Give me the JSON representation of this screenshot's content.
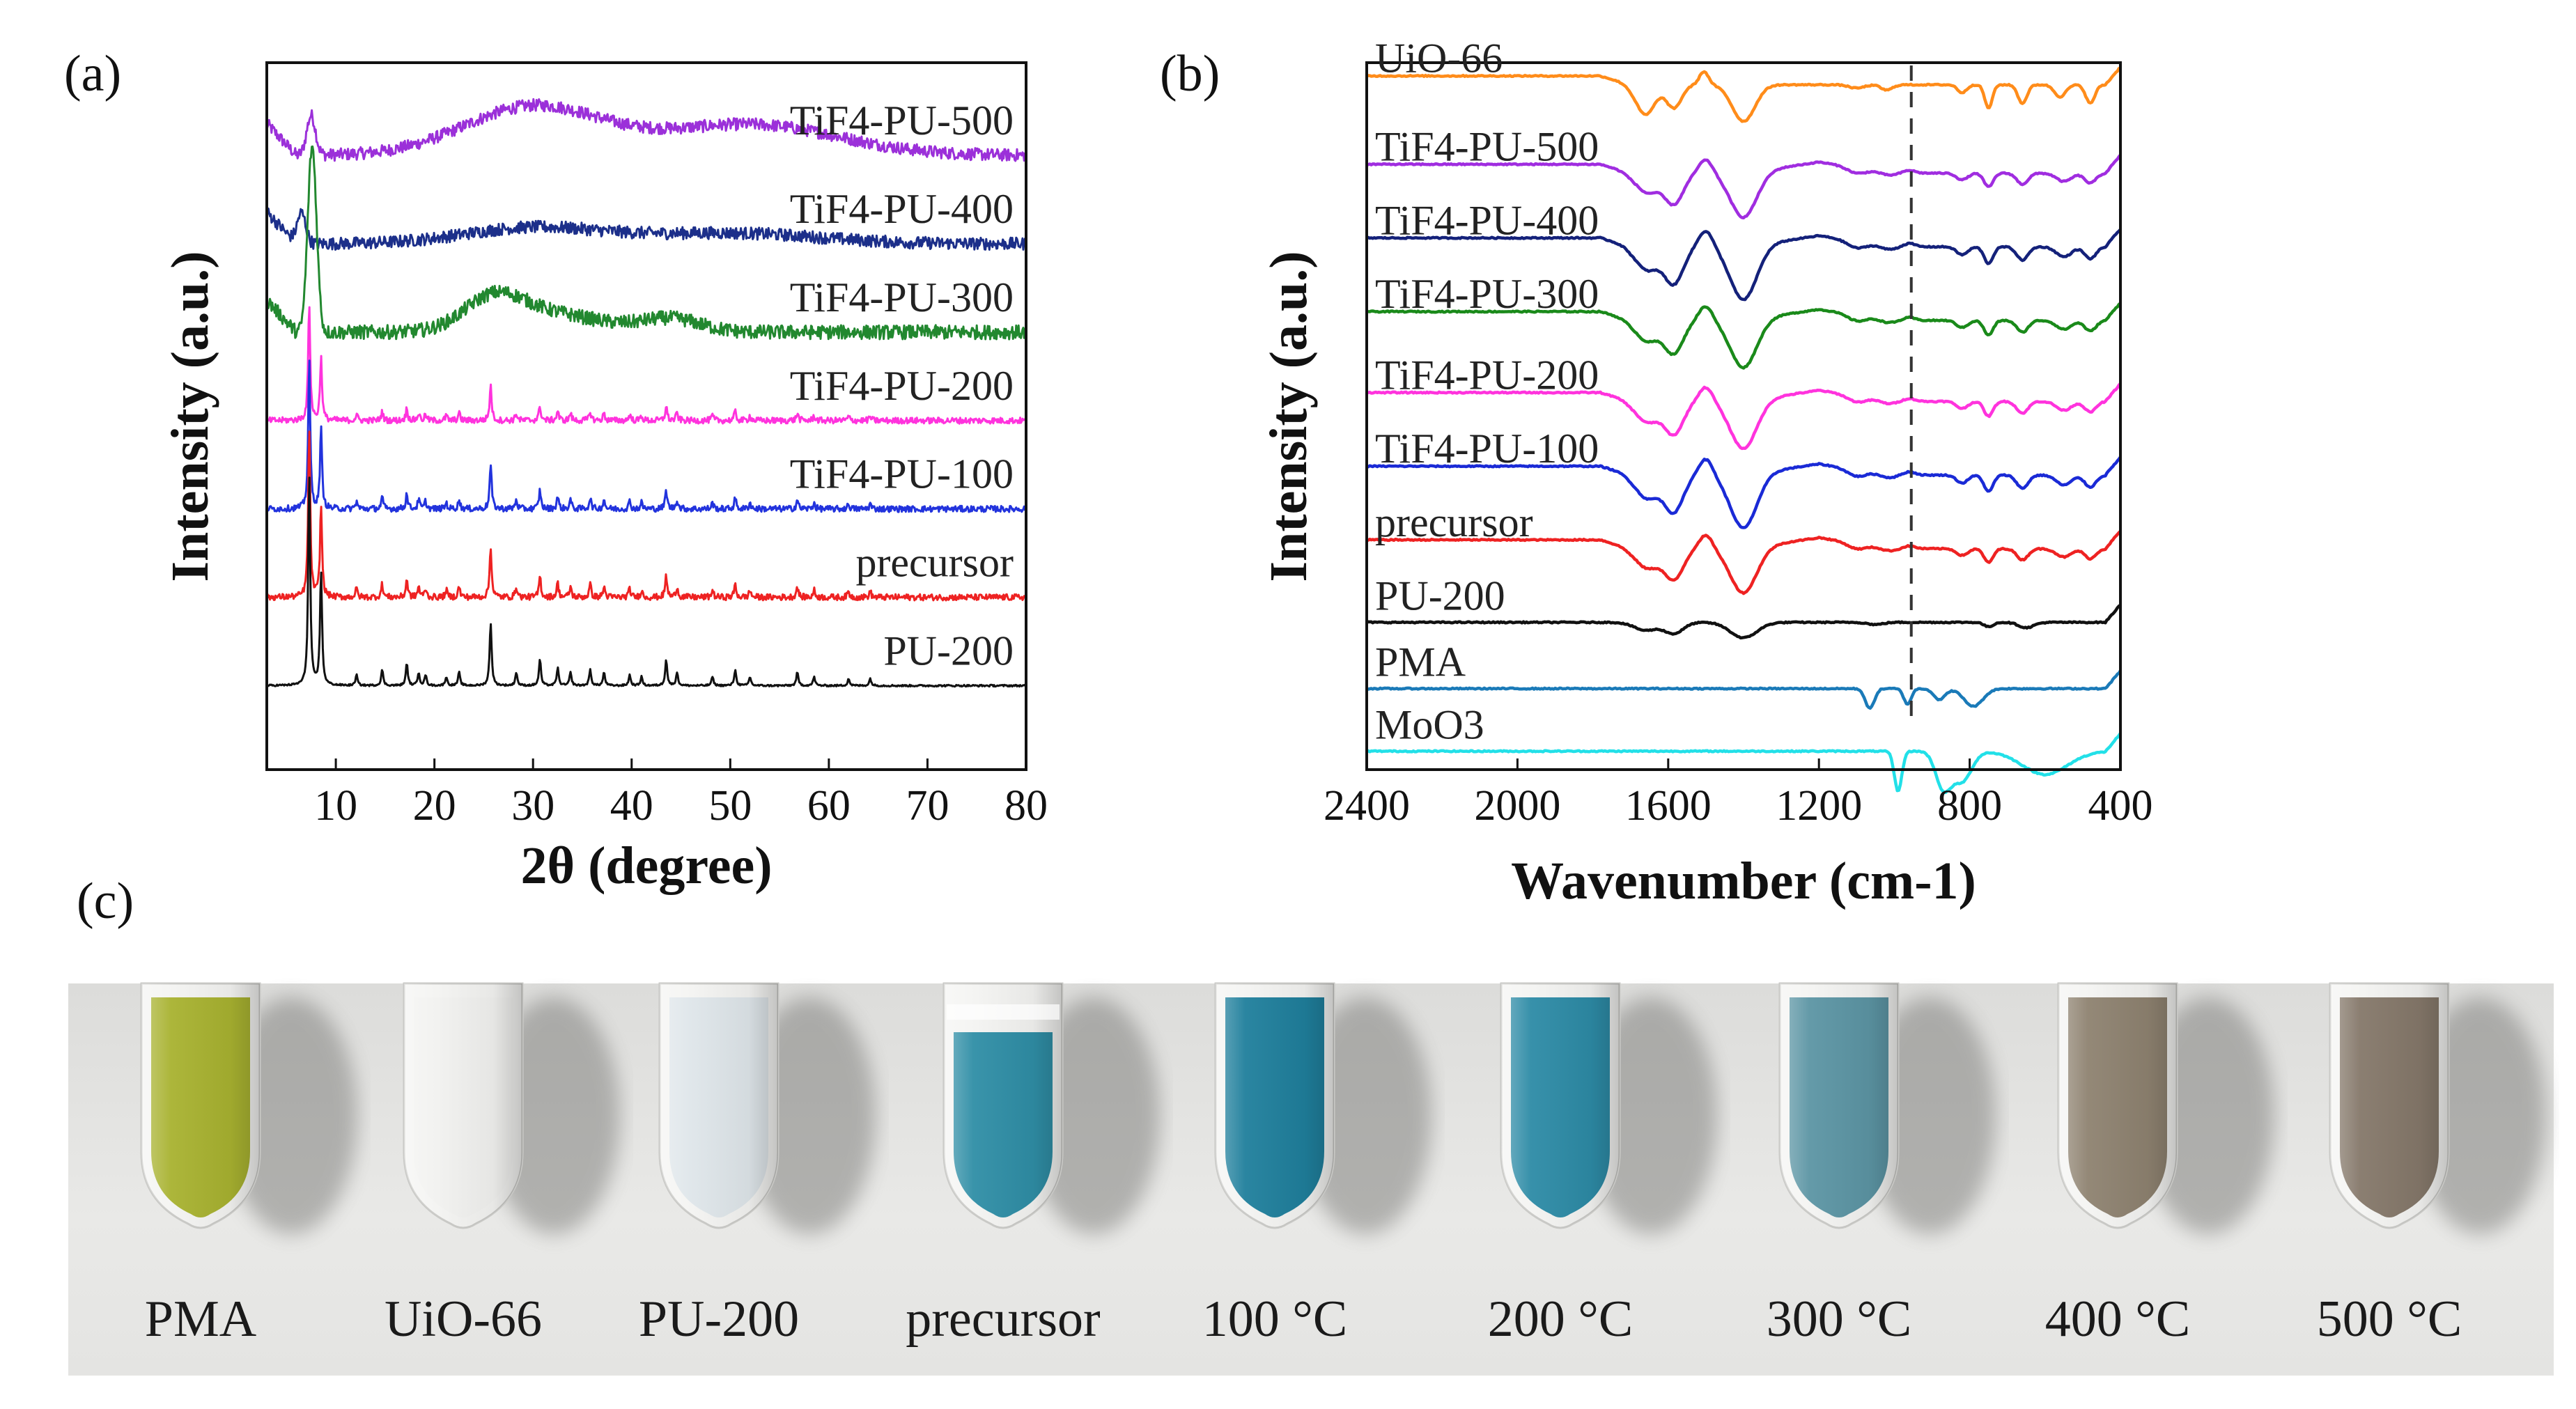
{
  "panels": {
    "a": {
      "letter": "(a)"
    },
    "b": {
      "letter": "(b)"
    },
    "c": {
      "letter": "(c)"
    }
  },
  "chart_data": [
    {
      "id": "xrd",
      "type": "line",
      "title": "",
      "xlabel": "2θ (degree)",
      "ylabel": "Intensity (a.u.)",
      "xlim": [
        3,
        80
      ],
      "ylim": [
        0,
        8
      ],
      "grid": false,
      "xticks": [
        10,
        20,
        30,
        40,
        50,
        60,
        70,
        80
      ],
      "xtick_labels": [
        "10",
        "20",
        "30",
        "40",
        "50",
        "60",
        "70",
        "80"
      ],
      "series": [
        {
          "name": "TiF4-PU-500",
          "color": "#9b30d9",
          "baseline": 6.95,
          "kind": "amorphous",
          "peak": [
            7.5,
            0.45
          ],
          "humps": [
            [
              30,
              0.55,
              7
            ],
            [
              52,
              0.35,
              9
            ]
          ],
          "noise": 0.07
        },
        {
          "name": "TiF4-PU-400",
          "color": "#1c2f8a",
          "baseline": 5.95,
          "kind": "amorphous",
          "peak": [
            6.5,
            0.35
          ],
          "humps": [
            [
              30,
              0.18,
              7
            ],
            [
              50,
              0.12,
              9
            ]
          ],
          "noise": 0.07
        },
        {
          "name": "TiF4-PU-300",
          "color": "#22882f",
          "baseline": 4.95,
          "kind": "amorphous",
          "peak": [
            7.6,
            2.1
          ],
          "humps": [
            [
              26,
              0.35,
              3
            ],
            [
              32,
              0.2,
              5
            ],
            [
              44,
              0.15,
              3
            ]
          ],
          "noise": 0.08
        },
        {
          "name": "TiF4-PU-200",
          "color": "#ff33dd",
          "baseline": 3.95,
          "kind": "crystal",
          "scale": 0.55,
          "noise": 0.035
        },
        {
          "name": "TiF4-PU-100",
          "color": "#2233dd",
          "baseline": 2.95,
          "kind": "crystal",
          "scale": 0.7,
          "noise": 0.035
        },
        {
          "name": "precursor",
          "color": "#ee2222",
          "baseline": 1.95,
          "kind": "crystal",
          "scale": 0.8,
          "noise": 0.035
        },
        {
          "name": "PU-200",
          "color": "#111111",
          "baseline": 0.95,
          "kind": "crystal",
          "scale": 1.0,
          "noise": 0.01
        }
      ],
      "crystal_peaks": [
        [
          7.3,
          2.4
        ],
        [
          8.5,
          1.3
        ],
        [
          12.1,
          0.12
        ],
        [
          14.7,
          0.18
        ],
        [
          17.2,
          0.25
        ],
        [
          18.4,
          0.15
        ],
        [
          19.1,
          0.12
        ],
        [
          21.2,
          0.1
        ],
        [
          22.5,
          0.15
        ],
        [
          25.7,
          0.72
        ],
        [
          28.3,
          0.15
        ],
        [
          30.7,
          0.3
        ],
        [
          32.5,
          0.2
        ],
        [
          33.8,
          0.15
        ],
        [
          35.8,
          0.18
        ],
        [
          37.2,
          0.15
        ],
        [
          39.8,
          0.12
        ],
        [
          41.0,
          0.1
        ],
        [
          43.5,
          0.3
        ],
        [
          44.6,
          0.15
        ],
        [
          48.2,
          0.1
        ],
        [
          50.5,
          0.18
        ],
        [
          52.0,
          0.1
        ],
        [
          56.8,
          0.15
        ],
        [
          58.5,
          0.1
        ],
        [
          62.0,
          0.08
        ],
        [
          64.2,
          0.08
        ]
      ]
    },
    {
      "id": "ftir",
      "type": "line",
      "title": "",
      "xlabel": "Wavenumber (cm-1)",
      "ylabel": "Intensity (a.u.)",
      "xlim": [
        2400,
        400
      ],
      "ylim": [
        0,
        9.6
      ],
      "grid": false,
      "marker_line": 955,
      "xticks": [
        2400,
        2000,
        1600,
        1200,
        800,
        400
      ],
      "xtick_labels": [
        "2400",
        "2000",
        "1600",
        "1200",
        "800",
        "400"
      ],
      "series": [
        {
          "name": "UiO-66",
          "color": "#ff8c1a",
          "baseline": 9.3,
          "kind": "mof",
          "scale": 0.9
        },
        {
          "name": "TiF4-PU-500",
          "color": "#a02de0",
          "baseline": 8.1,
          "kind": "tif4",
          "scale": 0.75
        },
        {
          "name": "TiF4-PU-400",
          "color": "#14217a",
          "baseline": 7.1,
          "kind": "tif4",
          "scale": 0.9
        },
        {
          "name": "TiF4-PU-300",
          "color": "#1a8a1a",
          "baseline": 6.1,
          "kind": "tif4",
          "scale": 0.8
        },
        {
          "name": "TiF4-PU-200",
          "color": "#ff33dd",
          "baseline": 5.0,
          "kind": "tif4",
          "scale": 0.8
        },
        {
          "name": "TiF4-PU-100",
          "color": "#1a2ad6",
          "baseline": 4.0,
          "kind": "tif4",
          "scale": 0.9
        },
        {
          "name": "precursor",
          "color": "#ee2222",
          "baseline": 3.0,
          "kind": "tif4",
          "scale": 0.75
        },
        {
          "name": "PU-200",
          "color": "#111111",
          "baseline": 2.0,
          "kind": "pu",
          "scale": 0.6
        },
        {
          "name": "PMA",
          "color": "#1a7ab8",
          "baseline": 1.1,
          "kind": "pma",
          "scale": 0.6
        },
        {
          "name": "MoO3",
          "color": "#22e0e8",
          "baseline": 0.25,
          "kind": "moo3",
          "scale": 0.9
        }
      ]
    }
  ],
  "photo": {
    "background_color": "#e8e8e6",
    "samples": [
      {
        "label": "PMA",
        "color": "#a8b230"
      },
      {
        "label": "UiO-66",
        "color": "#f2f2f0"
      },
      {
        "label": "PU-200",
        "color": "#dfe6ea"
      },
      {
        "label": "precursor",
        "color": "#2f8ea6"
      },
      {
        "label": "100 °C",
        "color": "#1f7f9c"
      },
      {
        "label": "200 °C",
        "color": "#2d8ba6"
      },
      {
        "label": "300 °C",
        "color": "#5c95a4"
      },
      {
        "label": "400 °C",
        "color": "#8e8270"
      },
      {
        "label": "500 °C",
        "color": "#85786a"
      }
    ]
  }
}
